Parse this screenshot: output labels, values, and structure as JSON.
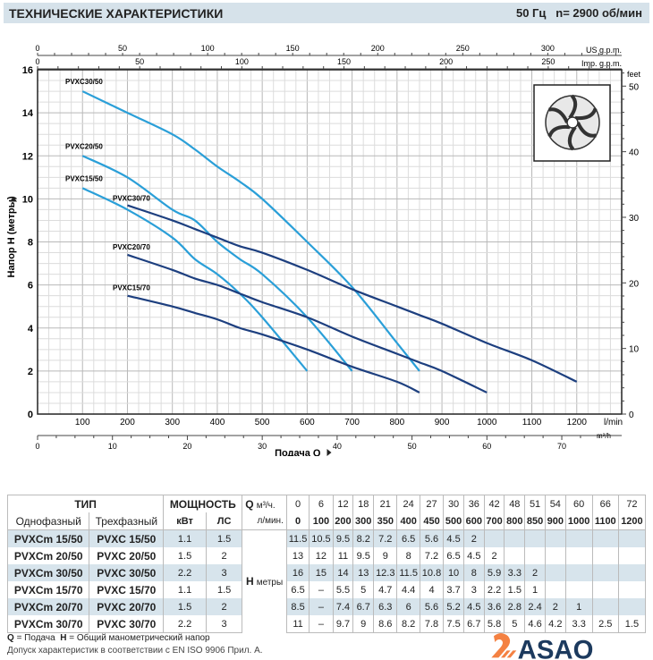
{
  "header": {
    "title": "ТЕХНИЧЕСКИЕ ХАРАКТЕРИСТИКИ",
    "freq": "50 Гц",
    "speed": "n= 2900 об/мин"
  },
  "chart_data": {
    "type": "line",
    "xlabel": "Подача Q",
    "ylabel": "Напор H (метры)",
    "x_unit": "l/min",
    "x2_unit": "m³/h",
    "top_units": [
      "US g.p.m.",
      "Imp. g.p.m."
    ],
    "y2_unit": "feet",
    "xlim": [
      0,
      1300
    ],
    "ylim": [
      0,
      16
    ],
    "x_ticks": [
      100,
      200,
      300,
      400,
      500,
      600,
      700,
      800,
      900,
      1000,
      1100,
      1200
    ],
    "y_ticks": [
      0,
      2,
      4,
      6,
      8,
      10,
      12,
      14,
      16
    ],
    "m3h_ticks": [
      0,
      10,
      20,
      30,
      40,
      50,
      60,
      70
    ],
    "usgpm_ticks": [
      0,
      50,
      100,
      150,
      200,
      250,
      300
    ],
    "impgpm_ticks": [
      0,
      50,
      100,
      150,
      200,
      250
    ],
    "feet_ticks": [
      0,
      10,
      20,
      30,
      40,
      50
    ],
    "grid": true,
    "colors": {
      "series_50": "#2a9fd8",
      "series_70": "#1d3f7f"
    },
    "series": [
      {
        "name": "PVXC30/50",
        "color": "#2a9fd8",
        "points": [
          [
            100,
            15
          ],
          [
            200,
            14
          ],
          [
            300,
            13
          ],
          [
            350,
            12.3
          ],
          [
            400,
            11.5
          ],
          [
            450,
            10.8
          ],
          [
            500,
            10
          ],
          [
            600,
            8
          ],
          [
            700,
            5.9
          ],
          [
            800,
            3.3
          ],
          [
            850,
            2
          ]
        ]
      },
      {
        "name": "PVXC20/50",
        "color": "#2a9fd8",
        "points": [
          [
            100,
            12
          ],
          [
            200,
            11
          ],
          [
            300,
            9.5
          ],
          [
            350,
            9
          ],
          [
            400,
            8
          ],
          [
            450,
            7.2
          ],
          [
            500,
            6.5
          ],
          [
            600,
            4.5
          ],
          [
            700,
            2
          ]
        ]
      },
      {
        "name": "PVXC15/50",
        "color": "#2a9fd8",
        "points": [
          [
            100,
            10.5
          ],
          [
            200,
            9.5
          ],
          [
            300,
            8.2
          ],
          [
            350,
            7.2
          ],
          [
            400,
            6.5
          ],
          [
            450,
            5.6
          ],
          [
            500,
            4.5
          ],
          [
            600,
            2
          ]
        ]
      },
      {
        "name": "PVXC30/70",
        "color": "#1d3f7f",
        "points": [
          [
            200,
            9.7
          ],
          [
            300,
            9
          ],
          [
            350,
            8.6
          ],
          [
            400,
            8.2
          ],
          [
            450,
            7.8
          ],
          [
            500,
            7.5
          ],
          [
            600,
            6.7
          ],
          [
            700,
            5.8
          ],
          [
            800,
            5
          ],
          [
            850,
            4.6
          ],
          [
            900,
            4.2
          ],
          [
            1000,
            3.3
          ],
          [
            1100,
            2.5
          ],
          [
            1200,
            1.5
          ]
        ]
      },
      {
        "name": "PVXC20/70",
        "color": "#1d3f7f",
        "points": [
          [
            200,
            7.4
          ],
          [
            300,
            6.7
          ],
          [
            350,
            6.3
          ],
          [
            400,
            6
          ],
          [
            450,
            5.6
          ],
          [
            500,
            5.2
          ],
          [
            600,
            4.5
          ],
          [
            700,
            3.6
          ],
          [
            800,
            2.8
          ],
          [
            850,
            2.4
          ],
          [
            900,
            2
          ],
          [
            1000,
            1
          ]
        ]
      },
      {
        "name": "PVXC15/70",
        "color": "#1d3f7f",
        "points": [
          [
            200,
            5.5
          ],
          [
            300,
            5
          ],
          [
            350,
            4.7
          ],
          [
            400,
            4.4
          ],
          [
            450,
            4
          ],
          [
            500,
            3.7
          ],
          [
            600,
            3
          ],
          [
            700,
            2.2
          ],
          [
            800,
            1.5
          ],
          [
            850,
            1
          ]
        ]
      }
    ]
  },
  "table": {
    "type_label": "ТИП",
    "power_label": "МОЩНОСТЬ",
    "single_phase": "Однофазный",
    "three_phase": "Трехфазный",
    "kw": "кВт",
    "hp": "ЛС",
    "q": "Q",
    "q_m3h": "м³/ч.",
    "q_lmin": "л/мин.",
    "h": "H",
    "h_unit": "метры",
    "m3h": [
      "0",
      "6",
      "12",
      "18",
      "21",
      "24",
      "27",
      "30",
      "36",
      "42",
      "48",
      "51",
      "54",
      "60",
      "66",
      "72"
    ],
    "lmin": [
      "0",
      "100",
      "200",
      "300",
      "350",
      "400",
      "450",
      "500",
      "600",
      "700",
      "800",
      "850",
      "900",
      "1000",
      "1100",
      "1200"
    ],
    "rows": [
      {
        "single": "PVXCm 15/50",
        "three": "PVXC 15/50",
        "kw": "1.1",
        "hp": "1.5",
        "h": [
          "11.5",
          "10.5",
          "9.5",
          "8.2",
          "7.2",
          "6.5",
          "5.6",
          "4.5",
          "2",
          "",
          "",
          "",
          "",
          "",
          "",
          ""
        ]
      },
      {
        "single": "PVXCm 20/50",
        "three": "PVXC 20/50",
        "kw": "1.5",
        "hp": "2",
        "h": [
          "13",
          "12",
          "11",
          "9.5",
          "9",
          "8",
          "7.2",
          "6.5",
          "4.5",
          "2",
          "",
          "",
          "",
          "",
          "",
          ""
        ]
      },
      {
        "single": "PVXCm 30/50",
        "three": "PVXC 30/50",
        "kw": "2.2",
        "hp": "3",
        "h": [
          "16",
          "15",
          "14",
          "13",
          "12.3",
          "11.5",
          "10.8",
          "10",
          "8",
          "5.9",
          "3.3",
          "2",
          "",
          "",
          "",
          ""
        ]
      },
      {
        "single": "PVXCm 15/70",
        "three": "PVXC 15/70",
        "kw": "1.1",
        "hp": "1.5",
        "h": [
          "6.5",
          "–",
          "5.5",
          "5",
          "4.7",
          "4.4",
          "4",
          "3.7",
          "3",
          "2.2",
          "1.5",
          "1",
          "",
          "",
          "",
          ""
        ]
      },
      {
        "single": "PVXCm 20/70",
        "three": "PVXC 20/70",
        "kw": "1.5",
        "hp": "2",
        "h": [
          "8.5",
          "–",
          "7.4",
          "6.7",
          "6.3",
          "6",
          "5.6",
          "5.2",
          "4.5",
          "3.6",
          "2.8",
          "2.4",
          "2",
          "1",
          "",
          ""
        ]
      },
      {
        "single": "PVXCm 30/70",
        "three": "PVXC 30/70",
        "kw": "2.2",
        "hp": "3",
        "h": [
          "11",
          "–",
          "9.7",
          "9",
          "8.6",
          "8.2",
          "7.8",
          "7.5",
          "6.7",
          "5.8",
          "5",
          "4.6",
          "4.2",
          "3.3",
          "2.5",
          "1.5"
        ]
      }
    ]
  },
  "footer": {
    "q_key": "Q",
    "q_text": "= Подача",
    "h_key": "H",
    "h_text": "= Общий манометрический напор",
    "tolerance": "Допуск характеристик в соответствии с EN ISO 9906 Прил. A."
  },
  "logo": {
    "text": "ASAO",
    "colors": [
      "#f26b21",
      "#1c3a5e"
    ]
  }
}
